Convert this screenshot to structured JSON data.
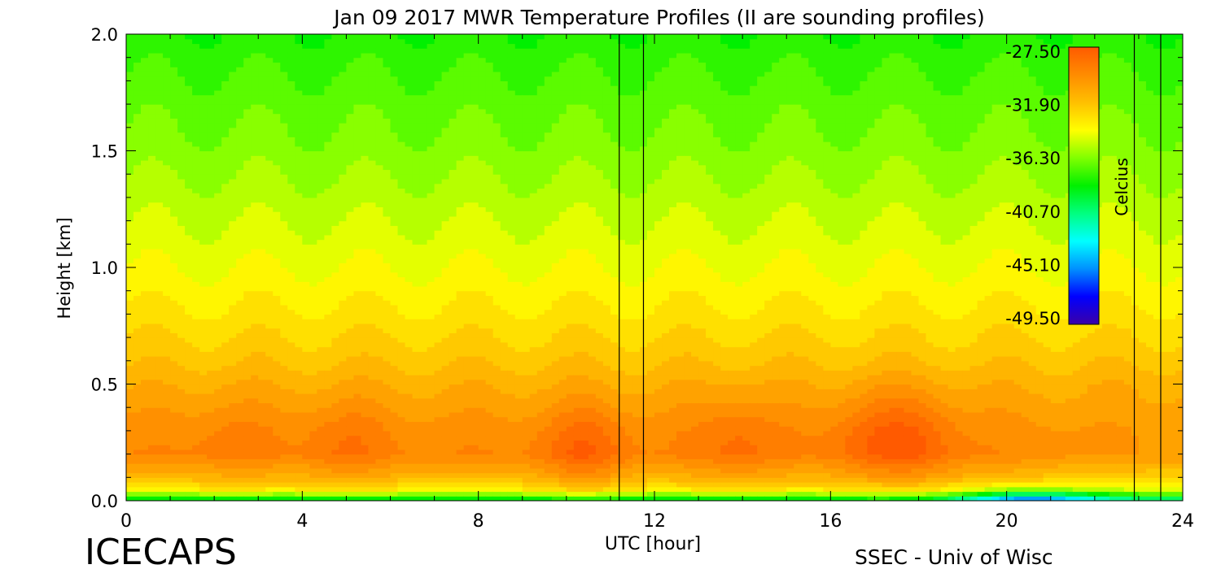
{
  "chart_data": {
    "type": "heatmap",
    "title": "Jan 09 2017 MWR Temperature Profiles (II are sounding profiles)",
    "xlabel": "UTC [hour]",
    "ylabel": "Height [km]",
    "xlim": [
      0,
      24
    ],
    "ylim": [
      0,
      2.0
    ],
    "x_ticks": [
      "0",
      "4",
      "8",
      "12",
      "16",
      "20",
      "24"
    ],
    "y_ticks": [
      "0.0",
      "0.5",
      "1.0",
      "1.5",
      "2.0"
    ],
    "colorbar": {
      "label": "Celcius",
      "ticks": [
        "-27.50",
        "-31.90",
        "-36.30",
        "-40.70",
        "-45.10",
        "-49.50"
      ],
      "range": [
        -49.5,
        -27.5
      ]
    },
    "sounding_times": [
      11.2,
      11.75,
      22.9,
      23.5
    ],
    "profile": {
      "heights_km": [
        0.0,
        0.02,
        0.05,
        0.1,
        0.2,
        0.3,
        0.4,
        0.5,
        0.6,
        0.8,
        1.0,
        1.2,
        1.5,
        1.8,
        2.0
      ],
      "temperature_c": [
        -40.0,
        -37.0,
        -33.5,
        -31.5,
        -29.5,
        -29.8,
        -30.5,
        -31.2,
        -32.0,
        -33.2,
        -34.2,
        -35.0,
        -36.2,
        -37.2,
        -38.0
      ]
    },
    "warm_cores": [
      {
        "t": 2.4,
        "z": 0.27,
        "dT": 0.6
      },
      {
        "t": 5.0,
        "z": 0.24,
        "dT": 1.0
      },
      {
        "t": 10.4,
        "z": 0.2,
        "dT": 1.8
      },
      {
        "t": 13.9,
        "z": 0.26,
        "dT": 1.2
      },
      {
        "t": 16.9,
        "z": 0.28,
        "dT": 1.5
      },
      {
        "t": 18.0,
        "z": 0.26,
        "dT": 1.6
      }
    ],
    "cold_surface": [
      {
        "t": 20.5,
        "z": 0.02,
        "dT": -6.0
      }
    ]
  },
  "footer": {
    "left_label": "ICECAPS",
    "right_label": "SSEC - Univ of Wisc"
  },
  "colors": {
    "colormap": [
      "#3b00a8",
      "#0000ff",
      "#0090ff",
      "#00ffff",
      "#00ff80",
      "#00f000",
      "#80ff00",
      "#ffff00",
      "#ffc000",
      "#ff8c00",
      "#ff5a00"
    ]
  }
}
